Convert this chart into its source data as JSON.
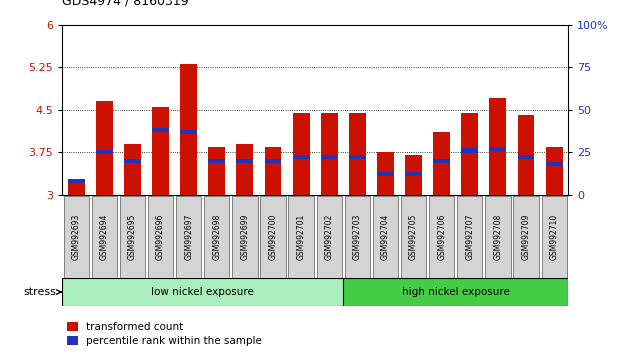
{
  "title": "GDS4974 / 8160319",
  "samples": [
    "GSM992693",
    "GSM992694",
    "GSM992695",
    "GSM992696",
    "GSM992697",
    "GSM992698",
    "GSM992699",
    "GSM992700",
    "GSM992701",
    "GSM992702",
    "GSM992703",
    "GSM992704",
    "GSM992705",
    "GSM992706",
    "GSM992707",
    "GSM992708",
    "GSM992709",
    "GSM992710"
  ],
  "transformed_counts": [
    3.2,
    4.65,
    3.9,
    4.55,
    5.3,
    3.85,
    3.9,
    3.85,
    4.45,
    4.45,
    4.45,
    3.75,
    3.7,
    4.1,
    4.45,
    4.7,
    4.4,
    3.85
  ],
  "percentile_ranks": [
    8,
    25,
    20,
    38,
    37,
    20,
    20,
    20,
    22,
    22,
    22,
    12,
    12,
    20,
    26,
    27,
    22,
    18
  ],
  "ymin": 3.0,
  "ymax": 6.0,
  "yticks_left": [
    3.0,
    3.75,
    4.5,
    5.25,
    6.0
  ],
  "ytick_labels_left": [
    "3",
    "3.75",
    "4.5",
    "5.25",
    "6"
  ],
  "yticks_right": [
    0,
    25,
    50,
    75,
    100
  ],
  "ytick_labels_right": [
    "0",
    "25",
    "50",
    "75",
    "100%"
  ],
  "low_nickel_count": 10,
  "bar_color": "#cc1100",
  "percentile_color": "#2233bb",
  "bg_color": "#ffffff",
  "xtick_bg": "#d4d4d4",
  "low_nickel_color": "#aaeebb",
  "high_nickel_color": "#44cc44",
  "legend_labels": [
    "transformed count",
    "percentile rank within the sample"
  ],
  "stress_label": "stress",
  "low_label": "low nickel exposure",
  "high_label": "high nickel exposure",
  "bar_width": 0.6,
  "blue_bar_height": 0.075
}
